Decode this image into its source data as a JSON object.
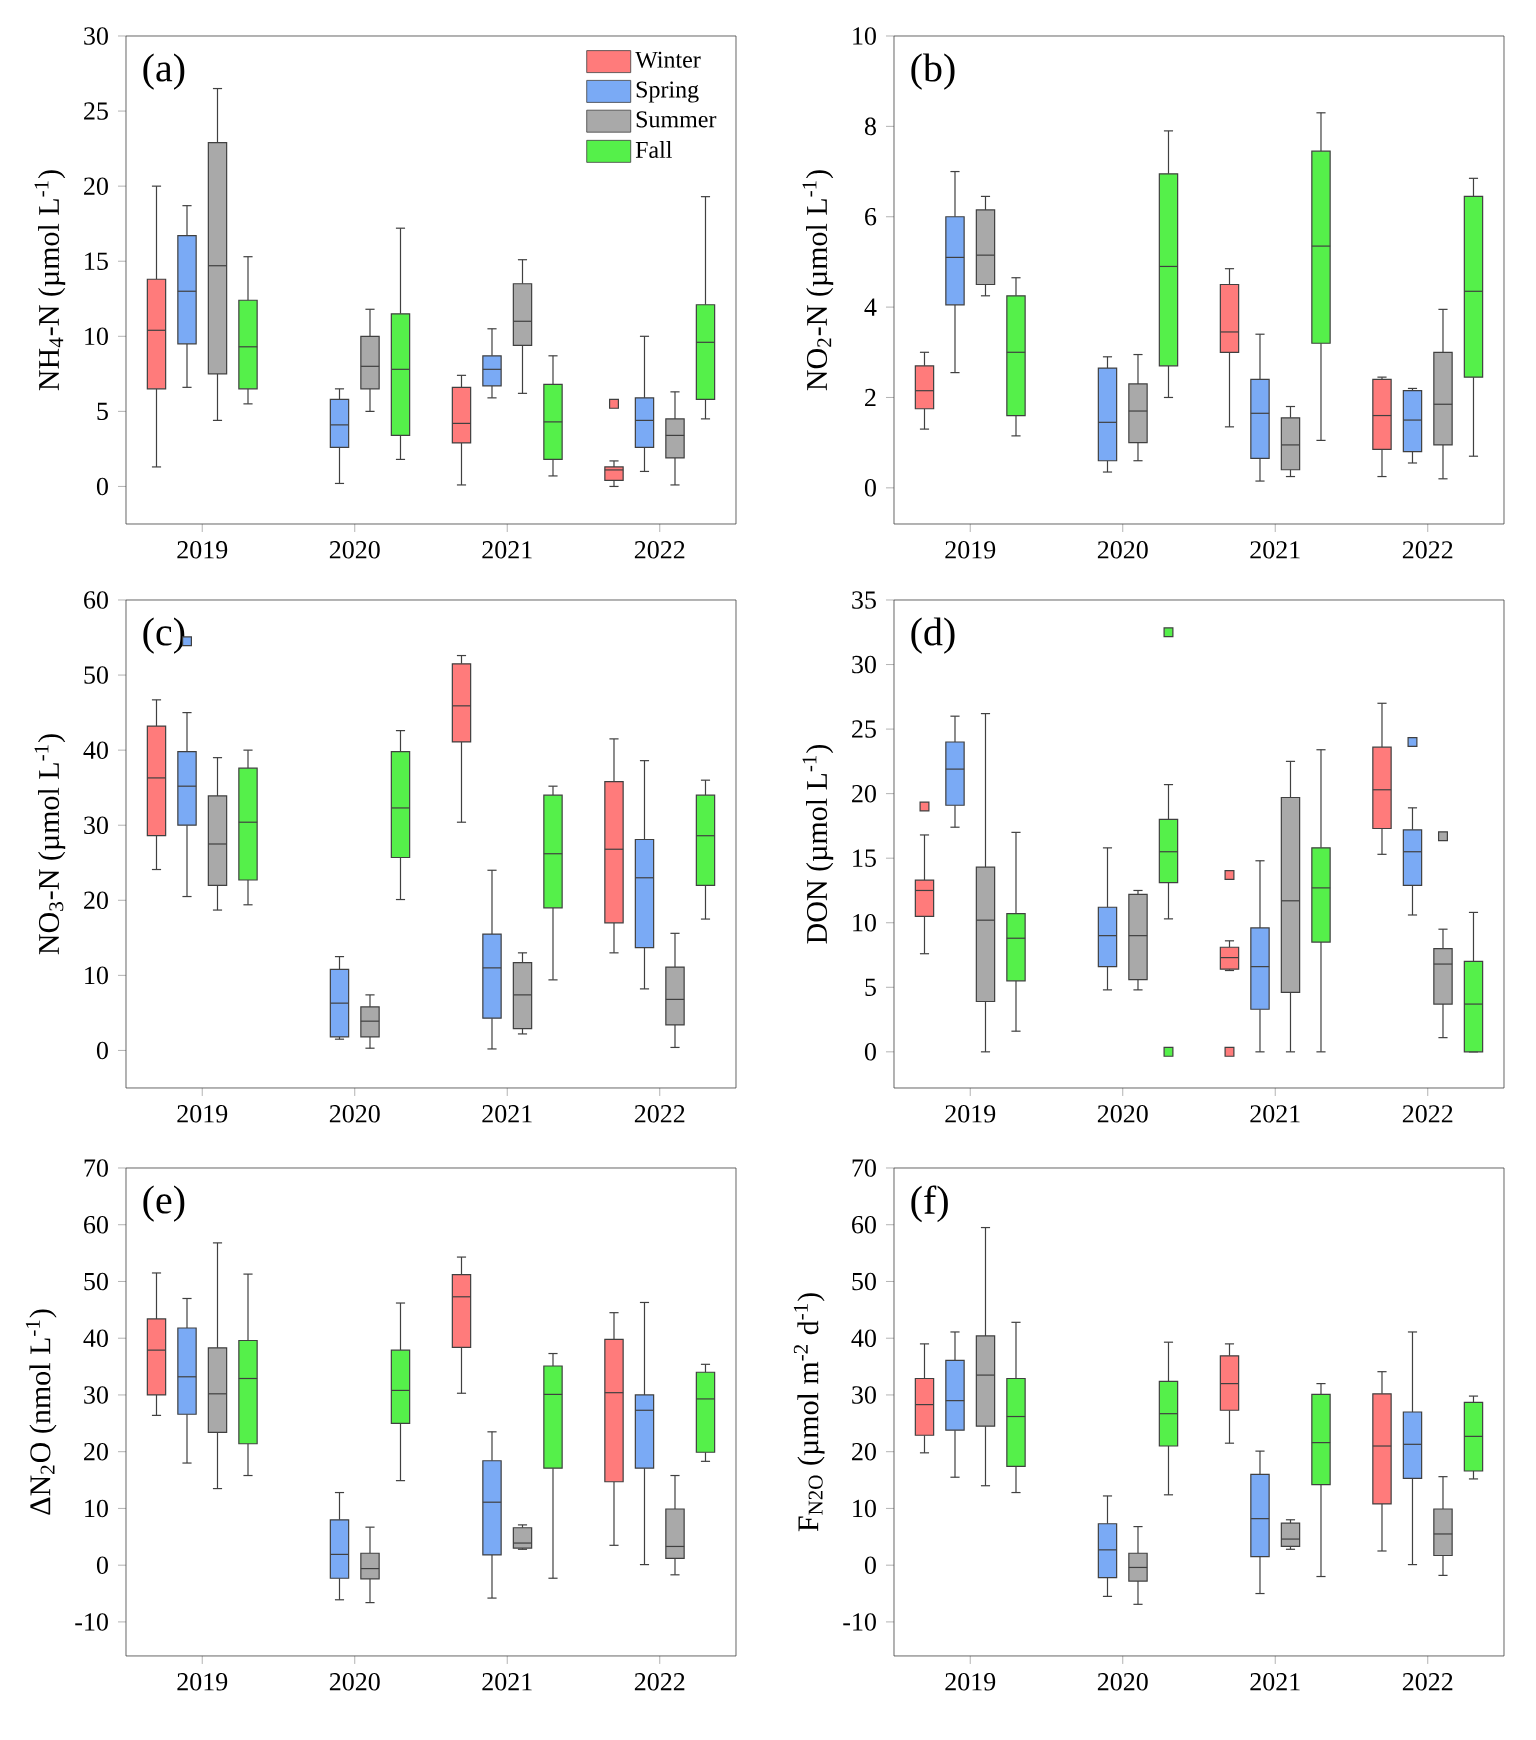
{
  "chart_data": [
    {
      "type": "box",
      "title": "(a)",
      "ylabel": "NH$_{4}$-N (µmol L$^{-1}$)",
      "categories": [
        "2019",
        "2020",
        "2021",
        "2022"
      ],
      "ylim": [
        -2.5,
        30
      ],
      "yticks": [
        0,
        5,
        10,
        15,
        20,
        25,
        30
      ],
      "legend": "top right",
      "marker": "square",
      "series": [
        {
          "name": "Winter",
          "color": "#ff7b7b",
          "boxes": [
            {
              "low": 1.3,
              "q1": 6.5,
              "median": 10.4,
              "q3": 13.8,
              "high": 20
            },
            null,
            {
              "low": 0.1,
              "q1": 2.9,
              "median": 4.2,
              "q3": 6.6,
              "high": 7.4
            },
            {
              "low": 0,
              "q1": 0.4,
              "median": 1.1,
              "q3": 1.3,
              "high": 1.7,
              "outliers": [
                5.5
              ]
            }
          ]
        },
        {
          "name": "Spring",
          "color": "#7aaaf5",
          "boxes": [
            {
              "low": 6.6,
              "q1": 9.5,
              "median": 13,
              "q3": 16.7,
              "high": 18.7
            },
            {
              "low": 0.2,
              "q1": 2.6,
              "median": 4.1,
              "q3": 5.8,
              "high": 6.5
            },
            {
              "low": 5.9,
              "q1": 6.7,
              "median": 7.8,
              "q3": 8.7,
              "high": 10.5
            },
            {
              "low": 1,
              "q1": 2.6,
              "median": 4.4,
              "q3": 5.9,
              "high": 10
            }
          ]
        },
        {
          "name": "Summer",
          "color": "#a9a9a9",
          "boxes": [
            {
              "low": 4.4,
              "q1": 7.5,
              "median": 14.7,
              "q3": 22.9,
              "high": 26.5
            },
            {
              "low": 5,
              "q1": 6.5,
              "median": 8,
              "q3": 10,
              "high": 11.8
            },
            {
              "low": 6.2,
              "q1": 9.4,
              "median": 11,
              "q3": 13.5,
              "high": 15.1
            },
            {
              "low": 0.1,
              "q1": 1.9,
              "median": 3.4,
              "q3": 4.5,
              "high": 6.3
            }
          ]
        },
        {
          "name": "Fall",
          "color": "#55f04a",
          "boxes": [
            {
              "low": 5.5,
              "q1": 6.5,
              "median": 9.3,
              "q3": 12.4,
              "high": 15.3
            },
            {
              "low": 1.8,
              "q1": 3.4,
              "median": 7.8,
              "q3": 11.5,
              "high": 17.2
            },
            {
              "low": 0.7,
              "q1": 1.8,
              "median": 4.3,
              "q3": 6.8,
              "high": 8.7
            },
            {
              "low": 4.5,
              "q1": 5.8,
              "median": 9.6,
              "q3": 12.1,
              "high": 19.3
            }
          ]
        }
      ]
    },
    {
      "type": "box",
      "title": "(b)",
      "ylabel": "NO$_{2}$-N (µmol L$^{-1}$)",
      "categories": [
        "2019",
        "2020",
        "2021",
        "2022"
      ],
      "ylim": [
        -0.8,
        10
      ],
      "yticks": [
        0,
        2,
        4,
        6,
        8,
        10
      ],
      "series": [
        {
          "color": "#ff7b7b",
          "boxes": [
            {
              "low": 1.3,
              "q1": 1.75,
              "median": 2.15,
              "q3": 2.7,
              "high": 3.0
            },
            null,
            {
              "low": 1.35,
              "q1": 3.0,
              "median": 3.45,
              "q3": 4.5,
              "high": 4.85
            },
            {
              "low": 0.25,
              "q1": 0.85,
              "median": 1.6,
              "q3": 2.4,
              "high": 2.45
            }
          ]
        },
        {
          "color": "#7aaaf5",
          "boxes": [
            {
              "low": 2.55,
              "q1": 4.05,
              "median": 5.1,
              "q3": 6.0,
              "high": 7.0
            },
            {
              "low": 0.35,
              "q1": 0.6,
              "median": 1.45,
              "q3": 2.65,
              "high": 2.9
            },
            {
              "low": 0.15,
              "q1": 0.65,
              "median": 1.65,
              "q3": 2.4,
              "high": 3.4
            },
            {
              "low": 0.55,
              "q1": 0.8,
              "median": 1.5,
              "q3": 2.15,
              "high": 2.2
            }
          ]
        },
        {
          "color": "#a9a9a9",
          "boxes": [
            {
              "low": 4.25,
              "q1": 4.5,
              "median": 5.15,
              "q3": 6.15,
              "high": 6.45
            },
            {
              "low": 0.6,
              "q1": 1.0,
              "median": 1.7,
              "q3": 2.3,
              "high": 2.95
            },
            {
              "low": 0.25,
              "q1": 0.4,
              "median": 0.95,
              "q3": 1.55,
              "high": 1.8
            },
            {
              "low": 0.2,
              "q1": 0.95,
              "median": 1.85,
              "q3": 3.0,
              "high": 3.95
            }
          ]
        },
        {
          "color": "#55f04a",
          "boxes": [
            {
              "low": 1.15,
              "q1": 1.6,
              "median": 3.0,
              "q3": 4.25,
              "high": 4.65
            },
            {
              "low": 2.0,
              "q1": 2.7,
              "median": 4.9,
              "q3": 6.95,
              "high": 7.9
            },
            {
              "low": 1.05,
              "q1": 3.2,
              "median": 5.35,
              "q3": 7.45,
              "high": 8.3
            },
            {
              "low": 0.7,
              "q1": 2.45,
              "median": 4.35,
              "q3": 6.45,
              "high": 6.85
            }
          ]
        }
      ]
    },
    {
      "type": "box",
      "title": "(c)",
      "ylabel": "NO$_{3}$-N (µmol L$^{-1}$)",
      "categories": [
        "2019",
        "2020",
        "2021",
        "2022"
      ],
      "ylim": [
        -5,
        60
      ],
      "yticks": [
        0,
        10,
        20,
        30,
        40,
        50,
        60
      ],
      "marker": "square",
      "series": [
        {
          "color": "#ff7b7b",
          "boxes": [
            {
              "low": 24.1,
              "q1": 28.6,
              "median": 36.3,
              "q3": 43.2,
              "high": 46.7
            },
            null,
            {
              "low": 30.4,
              "q1": 41.1,
              "median": 45.9,
              "q3": 51.5,
              "high": 52.6
            },
            {
              "low": 13,
              "q1": 17,
              "median": 26.8,
              "q3": 35.8,
              "high": 41.5
            }
          ]
        },
        {
          "color": "#7aaaf5",
          "boxes": [
            {
              "low": 20.5,
              "q1": 30,
              "median": 35.2,
              "q3": 39.8,
              "high": 45,
              "outliers": [
                54.5
              ]
            },
            {
              "low": 1.5,
              "q1": 1.8,
              "median": 6.3,
              "q3": 10.8,
              "high": 12.5
            },
            {
              "low": 0.2,
              "q1": 4.3,
              "median": 11,
              "q3": 15.5,
              "high": 24
            },
            {
              "low": 8.2,
              "q1": 13.7,
              "median": 23,
              "q3": 28.1,
              "high": 38.6
            }
          ]
        },
        {
          "color": "#a9a9a9",
          "boxes": [
            {
              "low": 18.7,
              "q1": 22,
              "median": 27.5,
              "q3": 33.9,
              "high": 39
            },
            {
              "low": 0.3,
              "q1": 1.8,
              "median": 3.9,
              "q3": 5.8,
              "high": 7.4
            },
            {
              "low": 2.2,
              "q1": 2.9,
              "median": 7.4,
              "q3": 11.7,
              "high": 13
            },
            {
              "low": 0.4,
              "q1": 3.4,
              "median": 6.8,
              "q3": 11.1,
              "high": 15.6
            }
          ]
        },
        {
          "color": "#55f04a",
          "boxes": [
            {
              "low": 19.4,
              "q1": 22.7,
              "median": 30.4,
              "q3": 37.6,
              "high": 40
            },
            {
              "low": 20.1,
              "q1": 25.7,
              "median": 32.3,
              "q3": 39.8,
              "high": 42.6
            },
            {
              "low": 9.4,
              "q1": 19,
              "median": 26.2,
              "q3": 34,
              "high": 35.2
            },
            {
              "low": 17.5,
              "q1": 22,
              "median": 28.6,
              "q3": 34,
              "high": 36
            }
          ]
        }
      ]
    },
    {
      "type": "box",
      "title": "(d)",
      "ylabel": "DON (µmol L$^{-1}$)",
      "categories": [
        "2019",
        "2020",
        "2021",
        "2022"
      ],
      "ylim": [
        -2.8,
        35
      ],
      "yticks": [
        0,
        5,
        10,
        15,
        20,
        25,
        30,
        35
      ],
      "marker": "square",
      "series": [
        {
          "color": "#ff7b7b",
          "boxes": [
            {
              "low": 7.6,
              "q1": 10.5,
              "median": 12.5,
              "q3": 13.3,
              "high": 16.8,
              "outliers": [
                19
              ]
            },
            null,
            {
              "low": 6.3,
              "q1": 6.4,
              "median": 7.3,
              "q3": 8.1,
              "high": 8.6,
              "outliers": [
                13.7,
                0
              ]
            },
            {
              "low": 15.3,
              "q1": 17.3,
              "median": 20.3,
              "q3": 23.6,
              "high": 27
            }
          ]
        },
        {
          "color": "#7aaaf5",
          "boxes": [
            {
              "low": 17.4,
              "q1": 19.1,
              "median": 21.9,
              "q3": 24,
              "high": 26
            },
            {
              "low": 4.8,
              "q1": 6.6,
              "median": 9,
              "q3": 11.2,
              "high": 15.8
            },
            {
              "low": 0,
              "q1": 3.3,
              "median": 6.6,
              "q3": 9.6,
              "high": 14.8
            },
            {
              "low": 10.6,
              "q1": 12.9,
              "median": 15.5,
              "q3": 17.2,
              "high": 18.9,
              "outliers": [
                24
              ]
            }
          ]
        },
        {
          "color": "#a9a9a9",
          "boxes": [
            {
              "low": 0,
              "q1": 3.9,
              "median": 10.2,
              "q3": 14.3,
              "high": 26.2
            },
            {
              "low": 4.8,
              "q1": 5.6,
              "median": 9,
              "q3": 12.2,
              "high": 12.5
            },
            {
              "low": 0,
              "q1": 4.6,
              "median": 11.7,
              "q3": 19.7,
              "high": 22.5
            },
            {
              "low": 1.1,
              "q1": 3.7,
              "median": 6.8,
              "q3": 8,
              "high": 9.5,
              "outliers": [
                16.7
              ]
            }
          ]
        },
        {
          "color": "#55f04a",
          "boxes": [
            {
              "low": 1.6,
              "q1": 5.5,
              "median": 8.8,
              "q3": 10.7,
              "high": 17
            },
            {
              "low": 10.3,
              "q1": 13.1,
              "median": 15.5,
              "q3": 18,
              "high": 20.7,
              "outliers": [
                32.5,
                0
              ]
            },
            {
              "low": 0,
              "q1": 8.5,
              "median": 12.7,
              "q3": 15.8,
              "high": 23.4
            },
            {
              "low": 0,
              "q1": 0,
              "median": 3.7,
              "q3": 7,
              "high": 10.8
            }
          ]
        }
      ]
    },
    {
      "type": "box",
      "title": "(e)",
      "ylabel": "ΔN$_{2}$O (nmol L$^{-1}$)",
      "categories": [
        "2019",
        "2020",
        "2021",
        "2022"
      ],
      "ylim": [
        -16,
        70
      ],
      "yticks": [
        -10,
        0,
        10,
        20,
        30,
        40,
        50,
        60,
        70
      ],
      "series": [
        {
          "color": "#ff7b7b",
          "boxes": [
            {
              "low": 26.4,
              "q1": 30,
              "median": 37.9,
              "q3": 43.4,
              "high": 51.5
            },
            null,
            {
              "low": 30.3,
              "q1": 38.4,
              "median": 47.3,
              "q3": 51.2,
              "high": 54.3
            },
            {
              "low": 3.5,
              "q1": 14.7,
              "median": 30.4,
              "q3": 39.8,
              "high": 44.5
            }
          ]
        },
        {
          "color": "#7aaaf5",
          "boxes": [
            {
              "low": 18,
              "q1": 26.6,
              "median": 33.2,
              "q3": 41.8,
              "high": 47
            },
            {
              "low": -6.1,
              "q1": -2.3,
              "median": 1.9,
              "q3": 8,
              "high": 12.8
            },
            {
              "low": -5.8,
              "q1": 1.8,
              "median": 11.1,
              "q3": 18.4,
              "high": 23.5
            },
            {
              "low": 0.1,
              "q1": 17.1,
              "median": 27.3,
              "q3": 30,
              "high": 46.3
            }
          ]
        },
        {
          "color": "#a9a9a9",
          "boxes": [
            {
              "low": 13.5,
              "q1": 23.4,
              "median": 30.2,
              "q3": 38.3,
              "high": 56.8
            },
            {
              "low": -6.6,
              "q1": -2.4,
              "median": -0.6,
              "q3": 2.1,
              "high": 6.7
            },
            {
              "low": 2.8,
              "q1": 3,
              "median": 3.9,
              "q3": 6.6,
              "high": 7.1
            },
            {
              "low": -1.7,
              "q1": 1.2,
              "median": 3.3,
              "q3": 9.9,
              "high": 15.8
            }
          ]
        },
        {
          "color": "#55f04a",
          "boxes": [
            {
              "low": 15.8,
              "q1": 21.4,
              "median": 32.9,
              "q3": 39.6,
              "high": 51.3
            },
            {
              "low": 14.9,
              "q1": 25,
              "median": 30.8,
              "q3": 37.9,
              "high": 46.2
            },
            {
              "low": -2.3,
              "q1": 17.1,
              "median": 30.1,
              "q3": 35.1,
              "high": 37.3
            },
            {
              "low": 18.3,
              "q1": 19.9,
              "median": 29.3,
              "q3": 34,
              "high": 35.4
            }
          ]
        }
      ]
    },
    {
      "type": "box",
      "title": "(f)",
      "ylabel": "F$_{N2O}$ (µmol m$^{-2}$ d$^{-1}$)",
      "categories": [
        "2019",
        "2020",
        "2021",
        "2022"
      ],
      "ylim": [
        -16,
        70
      ],
      "yticks": [
        -10,
        0,
        10,
        20,
        30,
        40,
        50,
        60,
        70
      ],
      "series": [
        {
          "color": "#ff7b7b",
          "boxes": [
            {
              "low": 19.8,
              "q1": 22.9,
              "median": 28.3,
              "q3": 32.9,
              "high": 39
            },
            null,
            {
              "low": 21.5,
              "q1": 27.3,
              "median": 32,
              "q3": 36.9,
              "high": 39
            },
            {
              "low": 2.5,
              "q1": 10.8,
              "median": 21,
              "q3": 30.2,
              "high": 34.1
            }
          ]
        },
        {
          "color": "#7aaaf5",
          "boxes": [
            {
              "low": 15.5,
              "q1": 23.8,
              "median": 29,
              "q3": 36.1,
              "high": 41.1
            },
            {
              "low": -5.5,
              "q1": -2.2,
              "median": 2.7,
              "q3": 7.3,
              "high": 12.2
            },
            {
              "low": -5,
              "q1": 1.5,
              "median": 8.2,
              "q3": 16,
              "high": 20.1
            },
            {
              "low": 0.1,
              "q1": 15.3,
              "median": 21.3,
              "q3": 27,
              "high": 41.1
            }
          ]
        },
        {
          "color": "#a9a9a9",
          "boxes": [
            {
              "low": 14,
              "q1": 24.5,
              "median": 33.5,
              "q3": 40.4,
              "high": 59.5
            },
            {
              "low": -6.9,
              "q1": -2.8,
              "median": -0.4,
              "q3": 2.1,
              "high": 6.8
            },
            {
              "low": 2.8,
              "q1": 3.3,
              "median": 4.6,
              "q3": 7.4,
              "high": 8
            },
            {
              "low": -1.8,
              "q1": 1.7,
              "median": 5.5,
              "q3": 9.9,
              "high": 15.6
            }
          ]
        },
        {
          "color": "#55f04a",
          "boxes": [
            {
              "low": 12.8,
              "q1": 17.4,
              "median": 26.2,
              "q3": 32.9,
              "high": 42.8
            },
            {
              "low": 12.4,
              "q1": 21,
              "median": 26.7,
              "q3": 32.4,
              "high": 39.3
            },
            {
              "low": -2,
              "q1": 14.2,
              "median": 21.6,
              "q3": 30.1,
              "high": 32
            },
            {
              "low": 15.2,
              "q1": 16.6,
              "median": 22.7,
              "q3": 28.7,
              "high": 29.8
            }
          ]
        }
      ]
    }
  ]
}
